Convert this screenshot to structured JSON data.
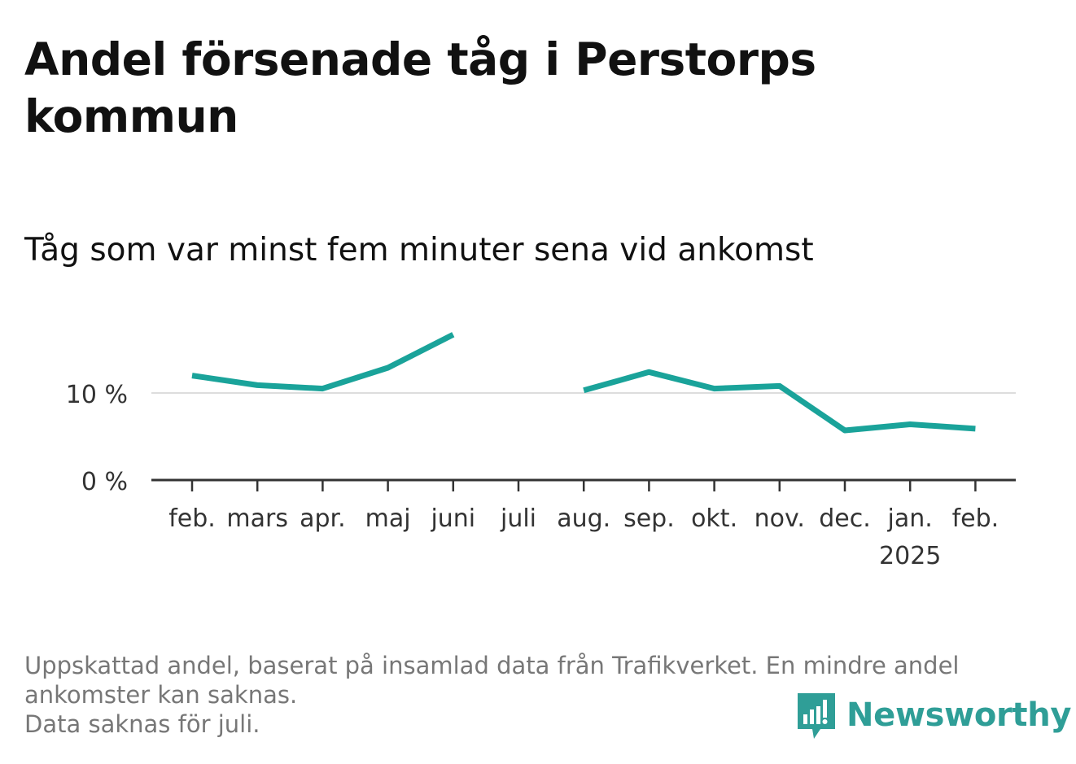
{
  "title": "Andel försenade tåg i Perstorps kommun",
  "subtitle": "Tåg som var minst fem minuter sena vid ankomst",
  "chart_data": {
    "type": "line",
    "title": "Andel försenade tåg i Perstorps kommun",
    "subtitle": "Tåg som var minst fem minuter sena vid ankomst",
    "xlabel": "",
    "ylabel": "",
    "categories": [
      "feb.",
      "mars",
      "apr.",
      "maj",
      "juni",
      "juli",
      "aug.",
      "sep.",
      "okt.",
      "nov.",
      "dec.",
      "jan.",
      "feb."
    ],
    "category_sublabels": [
      "",
      "",
      "",
      "",
      "",
      "",
      "",
      "",
      "",
      "",
      "",
      "2025",
      ""
    ],
    "series": [
      {
        "values": [
          12.0,
          10.9,
          10.5,
          12.9,
          16.7,
          null,
          10.3,
          12.4,
          10.5,
          10.8,
          5.7,
          6.4,
          5.9
        ]
      }
    ],
    "y_ticks": [
      0,
      10
    ],
    "y_tick_labels": [
      "0 %",
      "10 %"
    ],
    "ylim": [
      0,
      17
    ],
    "grid": true,
    "legend": "none",
    "line_color": "#1aa39a",
    "gridline_color": "#dddddd",
    "axis_color": "#333333"
  },
  "footnote": {
    "lines": [
      "Uppskattad andel, baserat på insamlad data från Trafikverket. En mindre andel",
      "ankomster kan saknas.",
      "Data saknas för juli."
    ]
  },
  "logo": {
    "text": "Newsworthy",
    "icon": "bar-chart-speech-bubble-icon",
    "color": "#2f9e97"
  }
}
